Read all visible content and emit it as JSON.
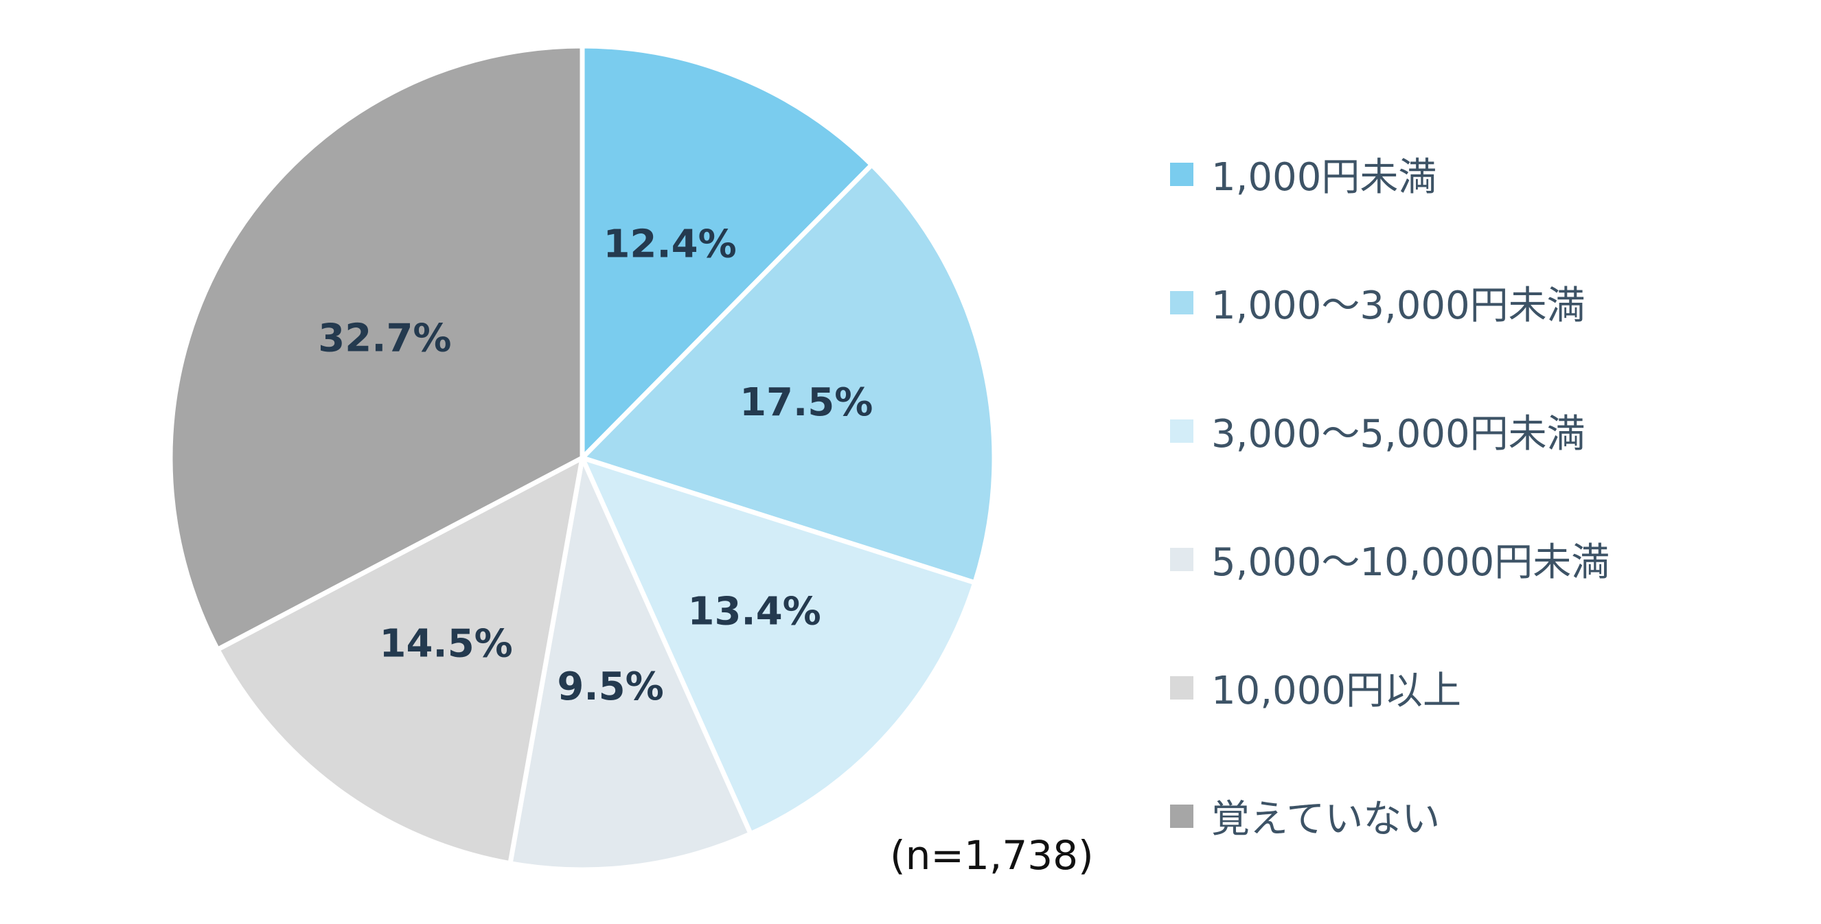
{
  "chart_data": {
    "type": "pie",
    "start_angle_deg": 0,
    "direction": "clockwise",
    "slices": [
      {
        "name": "1,000円未満",
        "value": 12.4,
        "label": "12.4%",
        "color": "#7accee"
      },
      {
        "name": "1,000〜3,000円未満",
        "value": 17.5,
        "label": "17.5%",
        "color": "#a5dcf2"
      },
      {
        "name": "3,000〜5,000円未満",
        "value": 13.4,
        "label": "13.4%",
        "color": "#d3edf8"
      },
      {
        "name": "5,000〜10,000円未満",
        "value": 9.5,
        "label": "9.5%",
        "color": "#e2e9ee"
      },
      {
        "name": "10,000円以上",
        "value": 14.5,
        "label": "14.5%",
        "color": "#d9d9d9"
      },
      {
        "name": "覚えていない",
        "value": 32.7,
        "label": "32.7%",
        "color": "#a6a6a6"
      }
    ],
    "legend_position": "right",
    "sample_size": "(n=1,738)"
  }
}
